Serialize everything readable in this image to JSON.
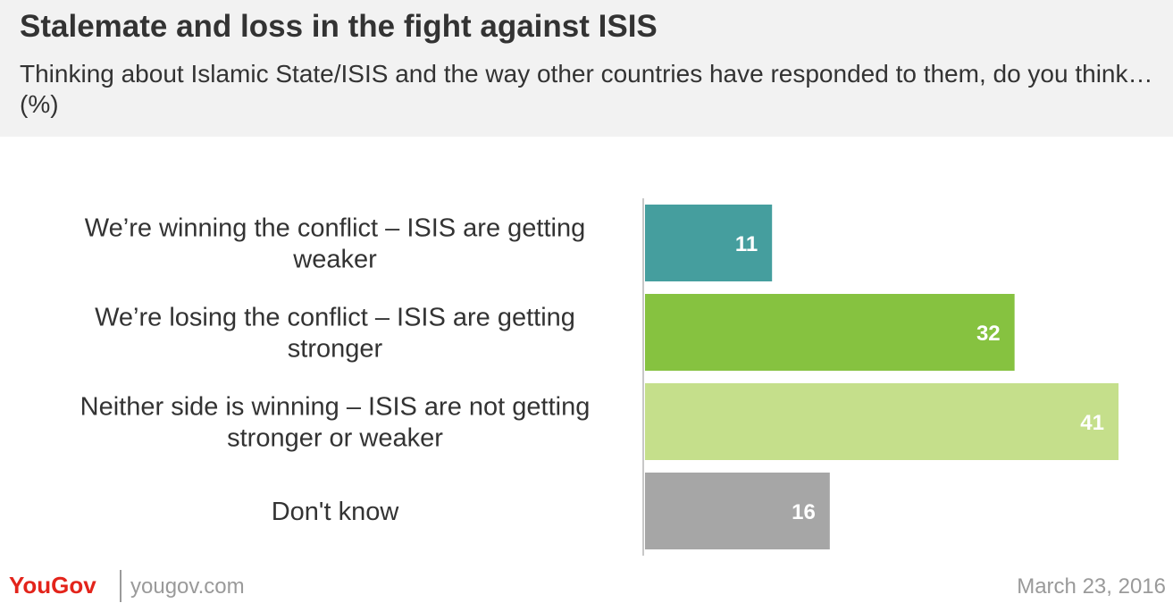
{
  "title": "Stalemate and loss in the fight against ISIS",
  "subtitle": "Thinking about Islamic State/ISIS and the way other countries have responded to them, do you think… (%)",
  "footer": {
    "brand": "YouGov",
    "site": "yougov.com",
    "date": "March 23, 2016"
  },
  "chart_data": {
    "type": "bar",
    "orientation": "horizontal",
    "categories": [
      "We’re winning the conflict – ISIS are getting weaker",
      "We’re losing the conflict – ISIS are getting stronger",
      "Neither side is winning – ISIS are not getting stronger or weaker",
      "Don't know"
    ],
    "category_lines": [
      [
        "We’re winning the conflict – ISIS are getting",
        "weaker"
      ],
      [
        "We’re losing the conflict – ISIS are getting",
        "stronger"
      ],
      [
        "Neither side is winning – ISIS are not getting",
        "stronger or weaker"
      ],
      [
        "Don't know"
      ]
    ],
    "values": [
      11,
      32,
      41,
      16
    ],
    "colors": [
      "#459e9e",
      "#86c240",
      "#c5df8b",
      "#a6a6a6"
    ],
    "data_labels": true,
    "value_axis_max": 41
  }
}
